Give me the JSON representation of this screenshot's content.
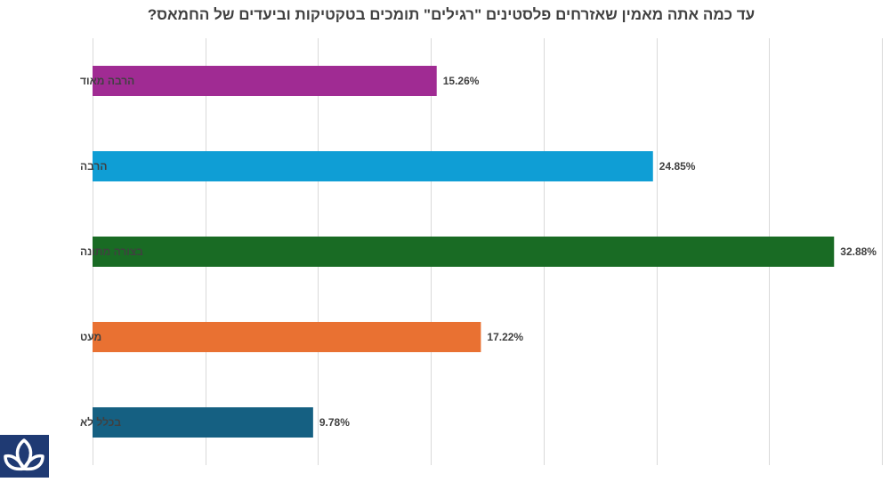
{
  "chart_data": {
    "type": "bar",
    "orientation": "horizontal",
    "title": "עד כמה אתה מאמין שאזרחים פלסטינים \"רגילים\" תומכים בטקטיקות וביעדים של החמאס?",
    "categories": [
      "הרבה מאוד",
      "הרבה",
      "בצורה מתונה",
      "מעט",
      "בכלל לא"
    ],
    "values": [
      15.26,
      24.85,
      32.88,
      17.22,
      9.78
    ],
    "value_labels": [
      "15.26%",
      "24.85%",
      "32.88%",
      "17.22%",
      "9.78%"
    ],
    "colors": [
      "#a02b93",
      "#0f9ed5",
      "#196b24",
      "#e97132",
      "#156082"
    ],
    "xlim": [
      0,
      35
    ],
    "grid": true,
    "legend": "none"
  },
  "logo": {
    "icon": "trefoil-logo-icon",
    "color": "#1f3a73"
  }
}
